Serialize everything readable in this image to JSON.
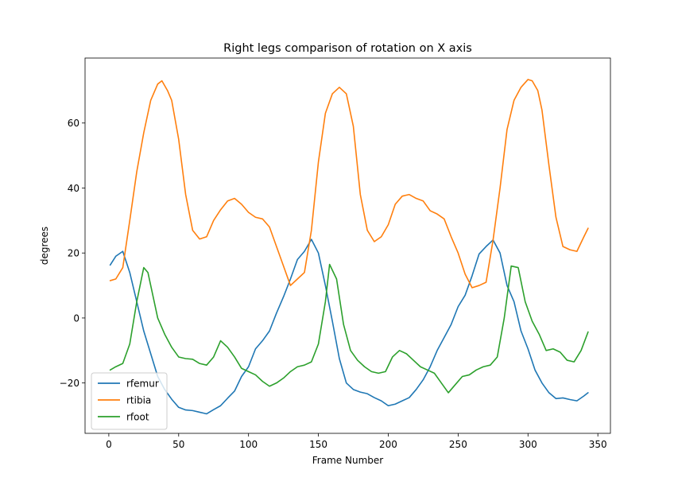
{
  "chart_data": {
    "type": "line",
    "title": "Right legs comparison of rotation on X axis",
    "xlabel": "Frame Number",
    "ylabel": "degrees",
    "xlim": [
      -17,
      359
    ],
    "ylim": [
      -35.5,
      80
    ],
    "xticks": [
      0,
      50,
      100,
      150,
      200,
      250,
      300,
      350
    ],
    "yticks": [
      -20,
      0,
      20,
      40,
      60
    ],
    "xtick_labels": [
      "0",
      "50",
      "100",
      "150",
      "200",
      "250",
      "300",
      "350"
    ],
    "ytick_labels": [
      "−20",
      "0",
      "20",
      "40",
      "60"
    ],
    "grid": false,
    "legend_position": "lower-left",
    "series": [
      {
        "name": "rfemur",
        "color": "#1f77b4",
        "x": [
          1,
          5,
          10,
          15,
          20,
          25,
          30,
          35,
          40,
          45,
          50,
          55,
          60,
          65,
          70,
          75,
          80,
          85,
          90,
          95,
          100,
          105,
          110,
          115,
          120,
          125,
          130,
          135,
          140,
          145,
          150,
          155,
          160,
          165,
          170,
          175,
          180,
          185,
          190,
          195,
          200,
          205,
          210,
          215,
          220,
          225,
          230,
          235,
          240,
          245,
          250,
          255,
          260,
          265,
          270,
          275,
          280,
          285,
          290,
          295,
          300,
          305,
          310,
          315,
          320,
          325,
          330,
          335,
          340,
          343
        ],
        "y": [
          16.3,
          19,
          20.5,
          14,
          5,
          -4,
          -11,
          -18,
          -22,
          -25,
          -27.5,
          -28.3,
          -28.5,
          -29,
          -29.5,
          -28.2,
          -27,
          -24.7,
          -22.5,
          -18,
          -15,
          -9.5,
          -7,
          -4,
          1.5,
          6.5,
          12,
          18,
          20.5,
          24.2,
          20,
          10,
          -1,
          -12.5,
          -20,
          -22,
          -22.8,
          -23.3,
          -24.5,
          -25.5,
          -27,
          -26.5,
          -25.5,
          -24.5,
          -22,
          -19,
          -15,
          -10,
          -6,
          -2,
          3.5,
          7,
          13,
          19.7,
          22,
          24,
          20,
          10,
          5,
          -4,
          -9.5,
          -16,
          -20,
          -23,
          -24.8,
          -24.6,
          -25.1,
          -25.5,
          -24,
          -23
        ]
      },
      {
        "name": "rtibia",
        "color": "#ff7f0e",
        "x": [
          1,
          5,
          10,
          15,
          20,
          25,
          30,
          35,
          38,
          42,
          45,
          50,
          55,
          60,
          65,
          70,
          75,
          80,
          85,
          90,
          95,
          100,
          105,
          110,
          115,
          120,
          125,
          130,
          135,
          140,
          145,
          150,
          155,
          160,
          165,
          170,
          175,
          180,
          185,
          190,
          195,
          200,
          205,
          210,
          215,
          220,
          225,
          230,
          235,
          240,
          245,
          250,
          255,
          260,
          265,
          270,
          275,
          280,
          285,
          290,
          295,
          300,
          303,
          307,
          310,
          315,
          320,
          325,
          330,
          335,
          340,
          343
        ],
        "y": [
          11.5,
          12,
          15.5,
          30,
          45,
          57,
          67,
          72,
          73,
          70,
          67,
          55,
          38,
          27,
          24.3,
          25,
          30,
          33.3,
          36,
          36.8,
          35,
          32.5,
          31,
          30.5,
          28,
          22,
          16,
          10,
          12,
          14,
          27,
          48,
          63,
          69,
          71,
          69,
          59,
          38,
          27,
          23.5,
          25,
          28.7,
          35,
          37.5,
          38,
          36.8,
          36,
          33,
          32,
          30.5,
          25,
          20,
          13.5,
          9.3,
          10,
          11,
          24,
          40,
          58,
          67,
          71,
          73.4,
          73,
          70,
          64,
          47,
          31,
          22,
          21,
          20.5,
          25,
          27.6
        ]
      },
      {
        "name": "rfoot",
        "color": "#2ca02c",
        "x": [
          1,
          5,
          10,
          15,
          20,
          25,
          28,
          30,
          35,
          40,
          45,
          50,
          55,
          60,
          65,
          70,
          75,
          80,
          85,
          90,
          95,
          100,
          105,
          110,
          115,
          120,
          125,
          130,
          135,
          140,
          145,
          150,
          155,
          158,
          163,
          168,
          173,
          178,
          183,
          188,
          193,
          198,
          203,
          208,
          213,
          218,
          223,
          228,
          233,
          238,
          243,
          248,
          253,
          258,
          263,
          268,
          273,
          278,
          283,
          288,
          293,
          298,
          303,
          308,
          313,
          318,
          323,
          328,
          333,
          338,
          343
        ],
        "y": [
          -16,
          -15,
          -14,
          -8,
          5,
          15.5,
          14,
          10,
          0,
          -5,
          -9,
          -12,
          -12.5,
          -12.7,
          -14,
          -14.5,
          -12,
          -7,
          -9,
          -12,
          -15.5,
          -16.5,
          -17.5,
          -19.5,
          -21,
          -20,
          -18.5,
          -16.5,
          -15,
          -14.5,
          -13.5,
          -8,
          5,
          16.5,
          12,
          -2,
          -10,
          -13,
          -15,
          -16.5,
          -17,
          -16.5,
          -12,
          -10,
          -11,
          -13,
          -15,
          -16,
          -17,
          -20,
          -23,
          -20.5,
          -18,
          -17.5,
          -16,
          -15,
          -14.5,
          -12,
          0,
          16,
          15.5,
          5,
          -1,
          -5,
          -10,
          -9.5,
          -10.5,
          -13,
          -13.5,
          -10,
          -4.3
        ]
      }
    ]
  }
}
